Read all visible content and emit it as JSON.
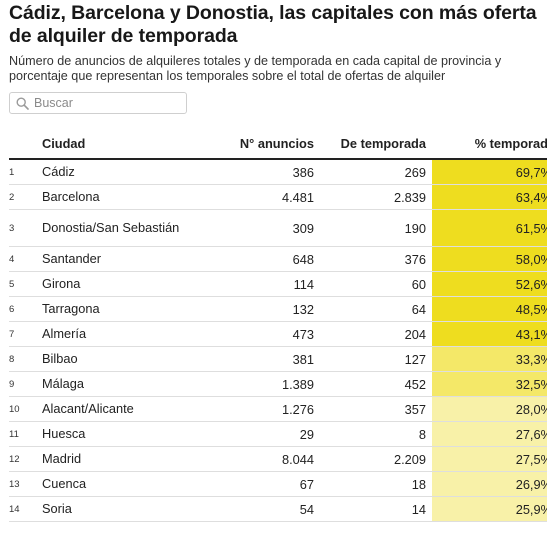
{
  "title": "Cádiz, Barcelona y Donostia, las capitales con más oferta de alquiler de temporada",
  "subtitle": "Número de anuncios de alquileres totales y de temporada en cada capital de provincia y porcentaje que representan los temporales sobre el total de ofertas de alquiler",
  "search": {
    "placeholder": "Buscar"
  },
  "colors": {
    "strong": "#eedd1f",
    "medium": "#f4e868",
    "light": "#f8f1a8",
    "header_rule": "#222222",
    "row_rule": "#dedede"
  },
  "chart_data": {
    "type": "table",
    "title": "Cádiz, Barcelona y Donostia, las capitales con más oferta de alquiler de temporada",
    "columns": [
      "",
      "Ciudad",
      "N° anuncios",
      "De temporada",
      "% temporada"
    ],
    "sort": {
      "column": "% temporada",
      "direction": "descending"
    },
    "rows": [
      {
        "rank": "1",
        "city": "Cádiz",
        "total": "386",
        "temporary": "269",
        "pct": "69,7%",
        "pct_value": 69.7
      },
      {
        "rank": "2",
        "city": "Barcelona",
        "total": "4.481",
        "temporary": "2.839",
        "pct": "63,4%",
        "pct_value": 63.4
      },
      {
        "rank": "3",
        "city": "Donostia/San Sebastián",
        "total": "309",
        "temporary": "190",
        "pct": "61,5%",
        "pct_value": 61.5
      },
      {
        "rank": "4",
        "city": "Santander",
        "total": "648",
        "temporary": "376",
        "pct": "58,0%",
        "pct_value": 58.0
      },
      {
        "rank": "5",
        "city": "Girona",
        "total": "114",
        "temporary": "60",
        "pct": "52,6%",
        "pct_value": 52.6
      },
      {
        "rank": "6",
        "city": "Tarragona",
        "total": "132",
        "temporary": "64",
        "pct": "48,5%",
        "pct_value": 48.5
      },
      {
        "rank": "7",
        "city": "Almería",
        "total": "473",
        "temporary": "204",
        "pct": "43,1%",
        "pct_value": 43.1
      },
      {
        "rank": "8",
        "city": "Bilbao",
        "total": "381",
        "temporary": "127",
        "pct": "33,3%",
        "pct_value": 33.3
      },
      {
        "rank": "9",
        "city": "Málaga",
        "total": "1.389",
        "temporary": "452",
        "pct": "32,5%",
        "pct_value": 32.5
      },
      {
        "rank": "10",
        "city": "Alacant/Alicante",
        "total": "1.276",
        "temporary": "357",
        "pct": "28,0%",
        "pct_value": 28.0
      },
      {
        "rank": "11",
        "city": "Huesca",
        "total": "29",
        "temporary": "8",
        "pct": "27,6%",
        "pct_value": 27.6
      },
      {
        "rank": "12",
        "city": "Madrid",
        "total": "8.044",
        "temporary": "2.209",
        "pct": "27,5%",
        "pct_value": 27.5
      },
      {
        "rank": "13",
        "city": "Cuenca",
        "total": "67",
        "temporary": "18",
        "pct": "26,9%",
        "pct_value": 26.9
      },
      {
        "rank": "14",
        "city": "Soria",
        "total": "54",
        "temporary": "14",
        "pct": "25,9%",
        "pct_value": 25.9
      }
    ]
  }
}
